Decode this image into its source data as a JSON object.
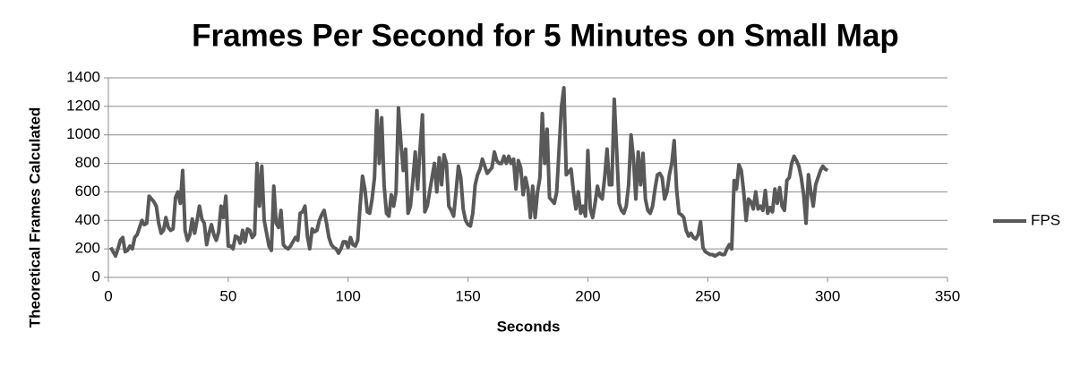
{
  "chart_data": {
    "type": "line",
    "title": "Frames Per Second for 5 Minutes on Small Map",
    "x_label": "Seconds",
    "y_label": "Theoretical Frames Calculated",
    "xlim": [
      0,
      350
    ],
    "xticks": [
      0,
      50,
      100,
      150,
      200,
      250,
      300,
      350
    ],
    "ylim": [
      0,
      1400
    ],
    "yticks": [
      0,
      200,
      400,
      600,
      800,
      1000,
      1200,
      1400
    ],
    "grid": true,
    "legend": "right",
    "x": [
      1,
      2,
      3,
      4,
      5,
      6,
      7,
      8,
      9,
      10,
      11,
      12,
      13,
      14,
      15,
      16,
      17,
      18,
      19,
      20,
      21,
      22,
      23,
      24,
      25,
      26,
      27,
      28,
      29,
      30,
      31,
      32,
      33,
      34,
      35,
      36,
      37,
      38,
      39,
      40,
      41,
      42,
      43,
      44,
      45,
      46,
      47,
      48,
      49,
      50,
      51,
      52,
      53,
      54,
      55,
      56,
      57,
      58,
      59,
      60,
      61,
      62,
      63,
      64,
      65,
      66,
      67,
      68,
      69,
      70,
      71,
      72,
      73,
      74,
      75,
      76,
      77,
      78,
      79,
      80,
      81,
      82,
      83,
      84,
      85,
      86,
      87,
      88,
      89,
      90,
      91,
      92,
      93,
      94,
      95,
      96,
      97,
      98,
      99,
      100,
      101,
      102,
      103,
      104,
      105,
      106,
      107,
      108,
      109,
      110,
      111,
      112,
      113,
      114,
      115,
      116,
      117,
      118,
      119,
      120,
      121,
      122,
      123,
      124,
      125,
      126,
      127,
      128,
      129,
      130,
      131,
      132,
      133,
      134,
      135,
      136,
      137,
      138,
      139,
      140,
      141,
      142,
      143,
      144,
      145,
      146,
      147,
      148,
      149,
      150,
      151,
      152,
      153,
      154,
      155,
      156,
      157,
      158,
      159,
      160,
      161,
      162,
      163,
      164,
      165,
      166,
      167,
      168,
      169,
      170,
      171,
      172,
      173,
      174,
      175,
      176,
      177,
      178,
      179,
      180,
      181,
      182,
      183,
      184,
      185,
      186,
      187,
      188,
      189,
      190,
      191,
      192,
      193,
      194,
      195,
      196,
      197,
      198,
      199,
      200,
      201,
      202,
      203,
      204,
      205,
      206,
      207,
      208,
      209,
      210,
      211,
      212,
      213,
      214,
      215,
      216,
      217,
      218,
      219,
      220,
      221,
      222,
      223,
      224,
      225,
      226,
      227,
      228,
      229,
      230,
      231,
      232,
      233,
      234,
      235,
      236,
      237,
      238,
      239,
      240,
      241,
      242,
      243,
      244,
      245,
      246,
      247,
      248,
      249,
      250,
      251,
      252,
      253,
      254,
      255,
      256,
      257,
      258,
      259,
      260,
      261,
      262,
      263,
      264,
      265,
      266,
      267,
      268,
      269,
      270,
      271,
      272,
      273,
      274,
      275,
      276,
      277,
      278,
      279,
      280,
      281,
      282,
      283,
      284,
      285,
      286,
      287,
      288,
      289,
      290,
      291,
      292,
      293,
      294,
      295,
      296,
      297,
      298,
      299,
      300
    ],
    "series": [
      {
        "name": "FPS",
        "color": "#595959",
        "values": [
          210,
          180,
          150,
          200,
          260,
          280,
          180,
          190,
          220,
          200,
          280,
          300,
          350,
          400,
          370,
          380,
          570,
          550,
          530,
          500,
          380,
          310,
          330,
          420,
          350,
          330,
          340,
          560,
          600,
          520,
          750,
          330,
          260,
          300,
          410,
          310,
          400,
          500,
          410,
          380,
          230,
          310,
          370,
          300,
          260,
          320,
          500,
          420,
          570,
          220,
          220,
          200,
          290,
          280,
          240,
          330,
          250,
          340,
          330,
          280,
          300,
          800,
          500,
          780,
          400,
          310,
          220,
          190,
          640,
          380,
          350,
          470,
          230,
          210,
          200,
          220,
          250,
          280,
          260,
          450,
          460,
          500,
          290,
          200,
          340,
          320,
          330,
          400,
          440,
          470,
          380,
          280,
          230,
          210,
          200,
          170,
          200,
          250,
          250,
          210,
          280,
          230,
          220,
          260,
          500,
          710,
          620,
          460,
          450,
          550,
          700,
          1170,
          800,
          1120,
          650,
          450,
          430,
          580,
          500,
          600,
          1190,
          950,
          750,
          900,
          450,
          500,
          680,
          880,
          620,
          900,
          1140,
          460,
          500,
          600,
          700,
          800,
          600,
          840,
          650,
          860,
          800,
          500,
          470,
          430,
          600,
          780,
          700,
          480,
          400,
          370,
          360,
          450,
          650,
          720,
          760,
          830,
          780,
          730,
          750,
          770,
          880,
          820,
          800,
          800,
          850,
          800,
          850,
          800,
          830,
          620,
          820,
          770,
          580,
          700,
          620,
          420,
          640,
          420,
          600,
          700,
          1150,
          800,
          1040,
          560,
          540,
          520,
          600,
          900,
          1200,
          1330,
          720,
          740,
          760,
          600,
          480,
          600,
          450,
          500,
          430,
          890,
          480,
          420,
          520,
          640,
          570,
          550,
          700,
          900,
          650,
          650,
          1250,
          900,
          520,
          470,
          450,
          500,
          650,
          1000,
          840,
          550,
          880,
          650,
          870,
          550,
          470,
          450,
          500,
          620,
          720,
          730,
          700,
          550,
          600,
          720,
          800,
          960,
          620,
          450,
          440,
          420,
          330,
          290,
          310,
          280,
          270,
          300,
          390,
          210,
          180,
          170,
          160,
          160,
          150,
          160,
          170,
          160,
          160,
          200,
          230,
          200,
          680,
          620,
          790,
          750,
          600,
          400,
          550,
          530,
          480,
          600,
          480,
          500,
          470,
          610,
          450,
          490,
          460,
          620,
          520,
          630,
          500,
          470,
          680,
          700,
          800,
          850,
          820,
          780,
          700,
          580,
          380,
          720,
          600,
          500,
          650,
          700,
          750,
          780,
          760,
          750
        ]
      }
    ]
  }
}
